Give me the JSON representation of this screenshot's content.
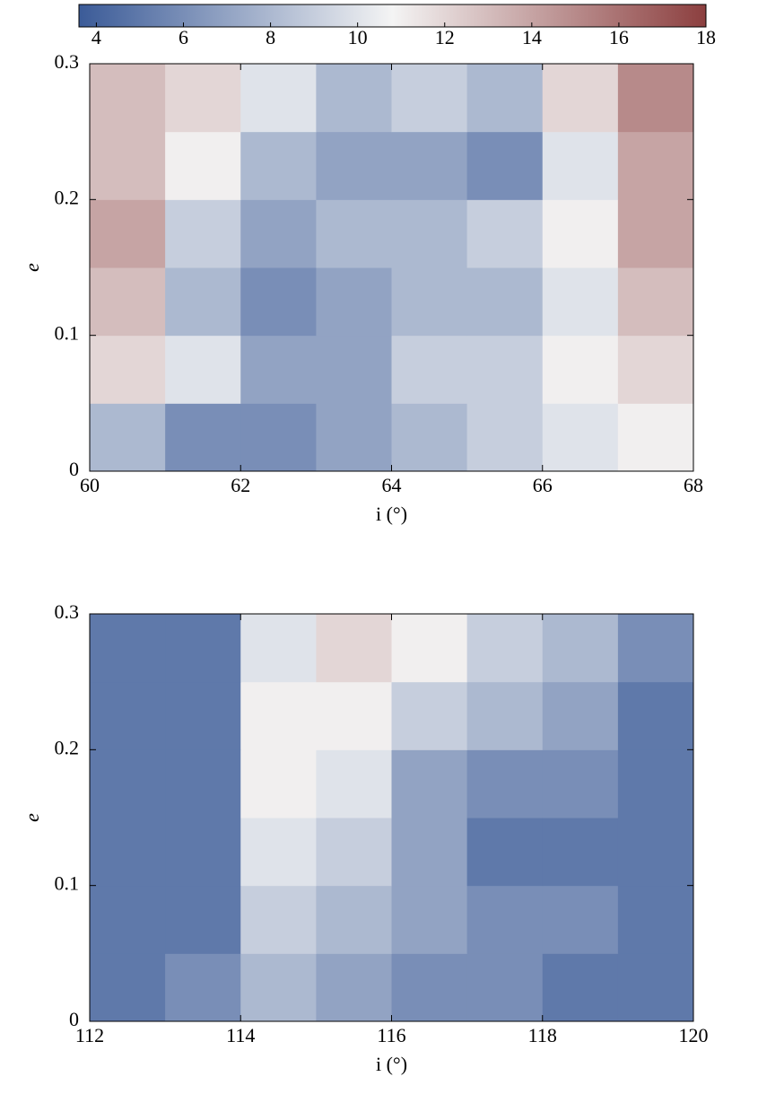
{
  "chart_data": [
    {
      "type": "heatmap",
      "xlabel": "i (°)",
      "ylabel": "e",
      "xlim": [
        60,
        68
      ],
      "ylim": [
        0,
        0.3
      ],
      "xticks": [
        60,
        62,
        64,
        66,
        68
      ],
      "yticks": [
        0,
        0.1,
        0.2,
        0.3
      ],
      "x": [
        60.5,
        61.5,
        62.5,
        63.5,
        64.5,
        65.5,
        66.5,
        67.5
      ],
      "y": [
        0.025,
        0.075,
        0.125,
        0.175,
        0.225,
        0.275
      ],
      "values": [
        [
          8,
          6,
          6,
          7,
          8,
          9,
          10,
          11
        ],
        [
          12,
          10,
          7,
          7,
          9,
          9,
          11,
          12
        ],
        [
          13,
          8,
          6,
          7,
          8,
          8,
          10,
          13
        ],
        [
          14,
          9,
          7,
          8,
          8,
          9,
          11,
          14
        ],
        [
          13,
          11,
          8,
          7,
          7,
          6,
          10,
          14
        ],
        [
          13,
          12,
          10,
          8,
          9,
          8,
          12,
          15
        ]
      ],
      "colorbar": {
        "zlim": [
          3.6,
          18
        ],
        "zticks": [
          4,
          6,
          8,
          10,
          12,
          14,
          16,
          18
        ],
        "colormap": [
          "#3b5b98",
          "#f4f4f4",
          "#8c3f3f"
        ]
      }
    },
    {
      "type": "heatmap",
      "xlabel": "i (°)",
      "ylabel": "e",
      "xlim": [
        112,
        120
      ],
      "ylim": [
        0,
        0.3
      ],
      "xticks": [
        112,
        114,
        116,
        118,
        120
      ],
      "yticks": [
        0,
        0.1,
        0.2,
        0.3
      ],
      "x": [
        112.5,
        113.5,
        114.5,
        115.5,
        116.5,
        117.5,
        118.5,
        119.5
      ],
      "y": [
        0.025,
        0.075,
        0.125,
        0.175,
        0.225,
        0.275
      ],
      "values": [
        [
          5,
          6,
          8,
          7,
          6,
          6,
          5,
          5
        ],
        [
          5,
          5,
          9,
          8,
          7,
          6,
          6,
          5
        ],
        [
          5,
          5,
          10,
          9,
          7,
          5,
          5,
          5
        ],
        [
          5,
          5,
          11,
          10,
          7,
          6,
          6,
          5
        ],
        [
          5,
          5,
          11,
          11,
          9,
          8,
          7,
          5
        ],
        [
          5,
          5,
          10,
          12,
          11,
          9,
          8,
          6
        ]
      ]
    }
  ]
}
